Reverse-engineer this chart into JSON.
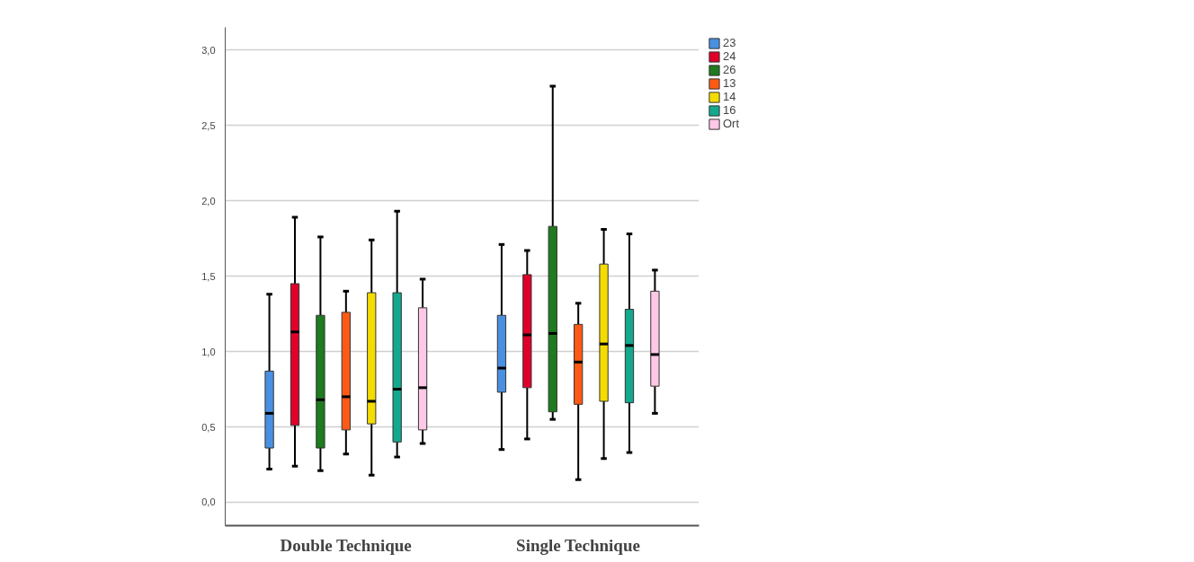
{
  "chart_data": {
    "type": "box",
    "categories": [
      "Double Technique",
      "Single Technique"
    ],
    "ylim": [
      -0.155,
      3.15
    ],
    "yticks": [
      {
        "value": 0,
        "label": "0,0"
      },
      {
        "value": 0.5,
        "label": "0,5"
      },
      {
        "value": 1,
        "label": "1,0"
      },
      {
        "value": 1.5,
        "label": "1,5"
      },
      {
        "value": 2,
        "label": "2,0"
      },
      {
        "value": 2.5,
        "label": "2,5"
      },
      {
        "value": 3,
        "label": "3,0"
      }
    ],
    "grid": "y",
    "legend": "top right",
    "series": [
      {
        "name": "23",
        "color": "#4a90e2",
        "boxes": [
          {
            "low": 0.22,
            "q1": 0.36,
            "median": 0.59,
            "q3": 0.87,
            "high": 1.38
          },
          {
            "low": 0.35,
            "q1": 0.73,
            "median": 0.89,
            "q3": 1.24,
            "high": 1.71
          }
        ]
      },
      {
        "name": "24",
        "color": "#e0002a",
        "boxes": [
          {
            "low": 0.24,
            "q1": 0.51,
            "median": 1.13,
            "q3": 1.45,
            "high": 1.89
          },
          {
            "low": 0.42,
            "q1": 0.76,
            "median": 1.11,
            "q3": 1.51,
            "high": 1.67
          }
        ]
      },
      {
        "name": "26",
        "color": "#1e7b1e",
        "boxes": [
          {
            "low": 0.21,
            "q1": 0.36,
            "median": 0.68,
            "q3": 1.24,
            "high": 1.76
          },
          {
            "low": 0.55,
            "q1": 0.6,
            "median": 1.12,
            "q3": 1.83,
            "high": 2.76
          }
        ]
      },
      {
        "name": "13",
        "color": "#ff5a14",
        "boxes": [
          {
            "low": 0.32,
            "q1": 0.48,
            "median": 0.7,
            "q3": 1.26,
            "high": 1.4
          },
          {
            "low": 0.15,
            "q1": 0.65,
            "median": 0.93,
            "q3": 1.18,
            "high": 1.32
          }
        ]
      },
      {
        "name": "14",
        "color": "#f5dc00",
        "boxes": [
          {
            "low": 0.18,
            "q1": 0.52,
            "median": 0.67,
            "q3": 1.39,
            "high": 1.74
          },
          {
            "low": 0.29,
            "q1": 0.67,
            "median": 1.05,
            "q3": 1.58,
            "high": 1.81
          }
        ]
      },
      {
        "name": "16",
        "color": "#14a88c",
        "boxes": [
          {
            "low": 0.3,
            "q1": 0.4,
            "median": 0.75,
            "q3": 1.39,
            "high": 1.93
          },
          {
            "low": 0.33,
            "q1": 0.66,
            "median": 1.04,
            "q3": 1.28,
            "high": 1.78
          }
        ]
      },
      {
        "name": "Ort",
        "color": "#ffc8e6",
        "boxes": [
          {
            "low": 0.39,
            "q1": 0.48,
            "median": 0.76,
            "q3": 1.29,
            "high": 1.48
          },
          {
            "low": 0.59,
            "q1": 0.77,
            "median": 0.98,
            "q3": 1.4,
            "high": 1.54
          }
        ]
      }
    ]
  }
}
